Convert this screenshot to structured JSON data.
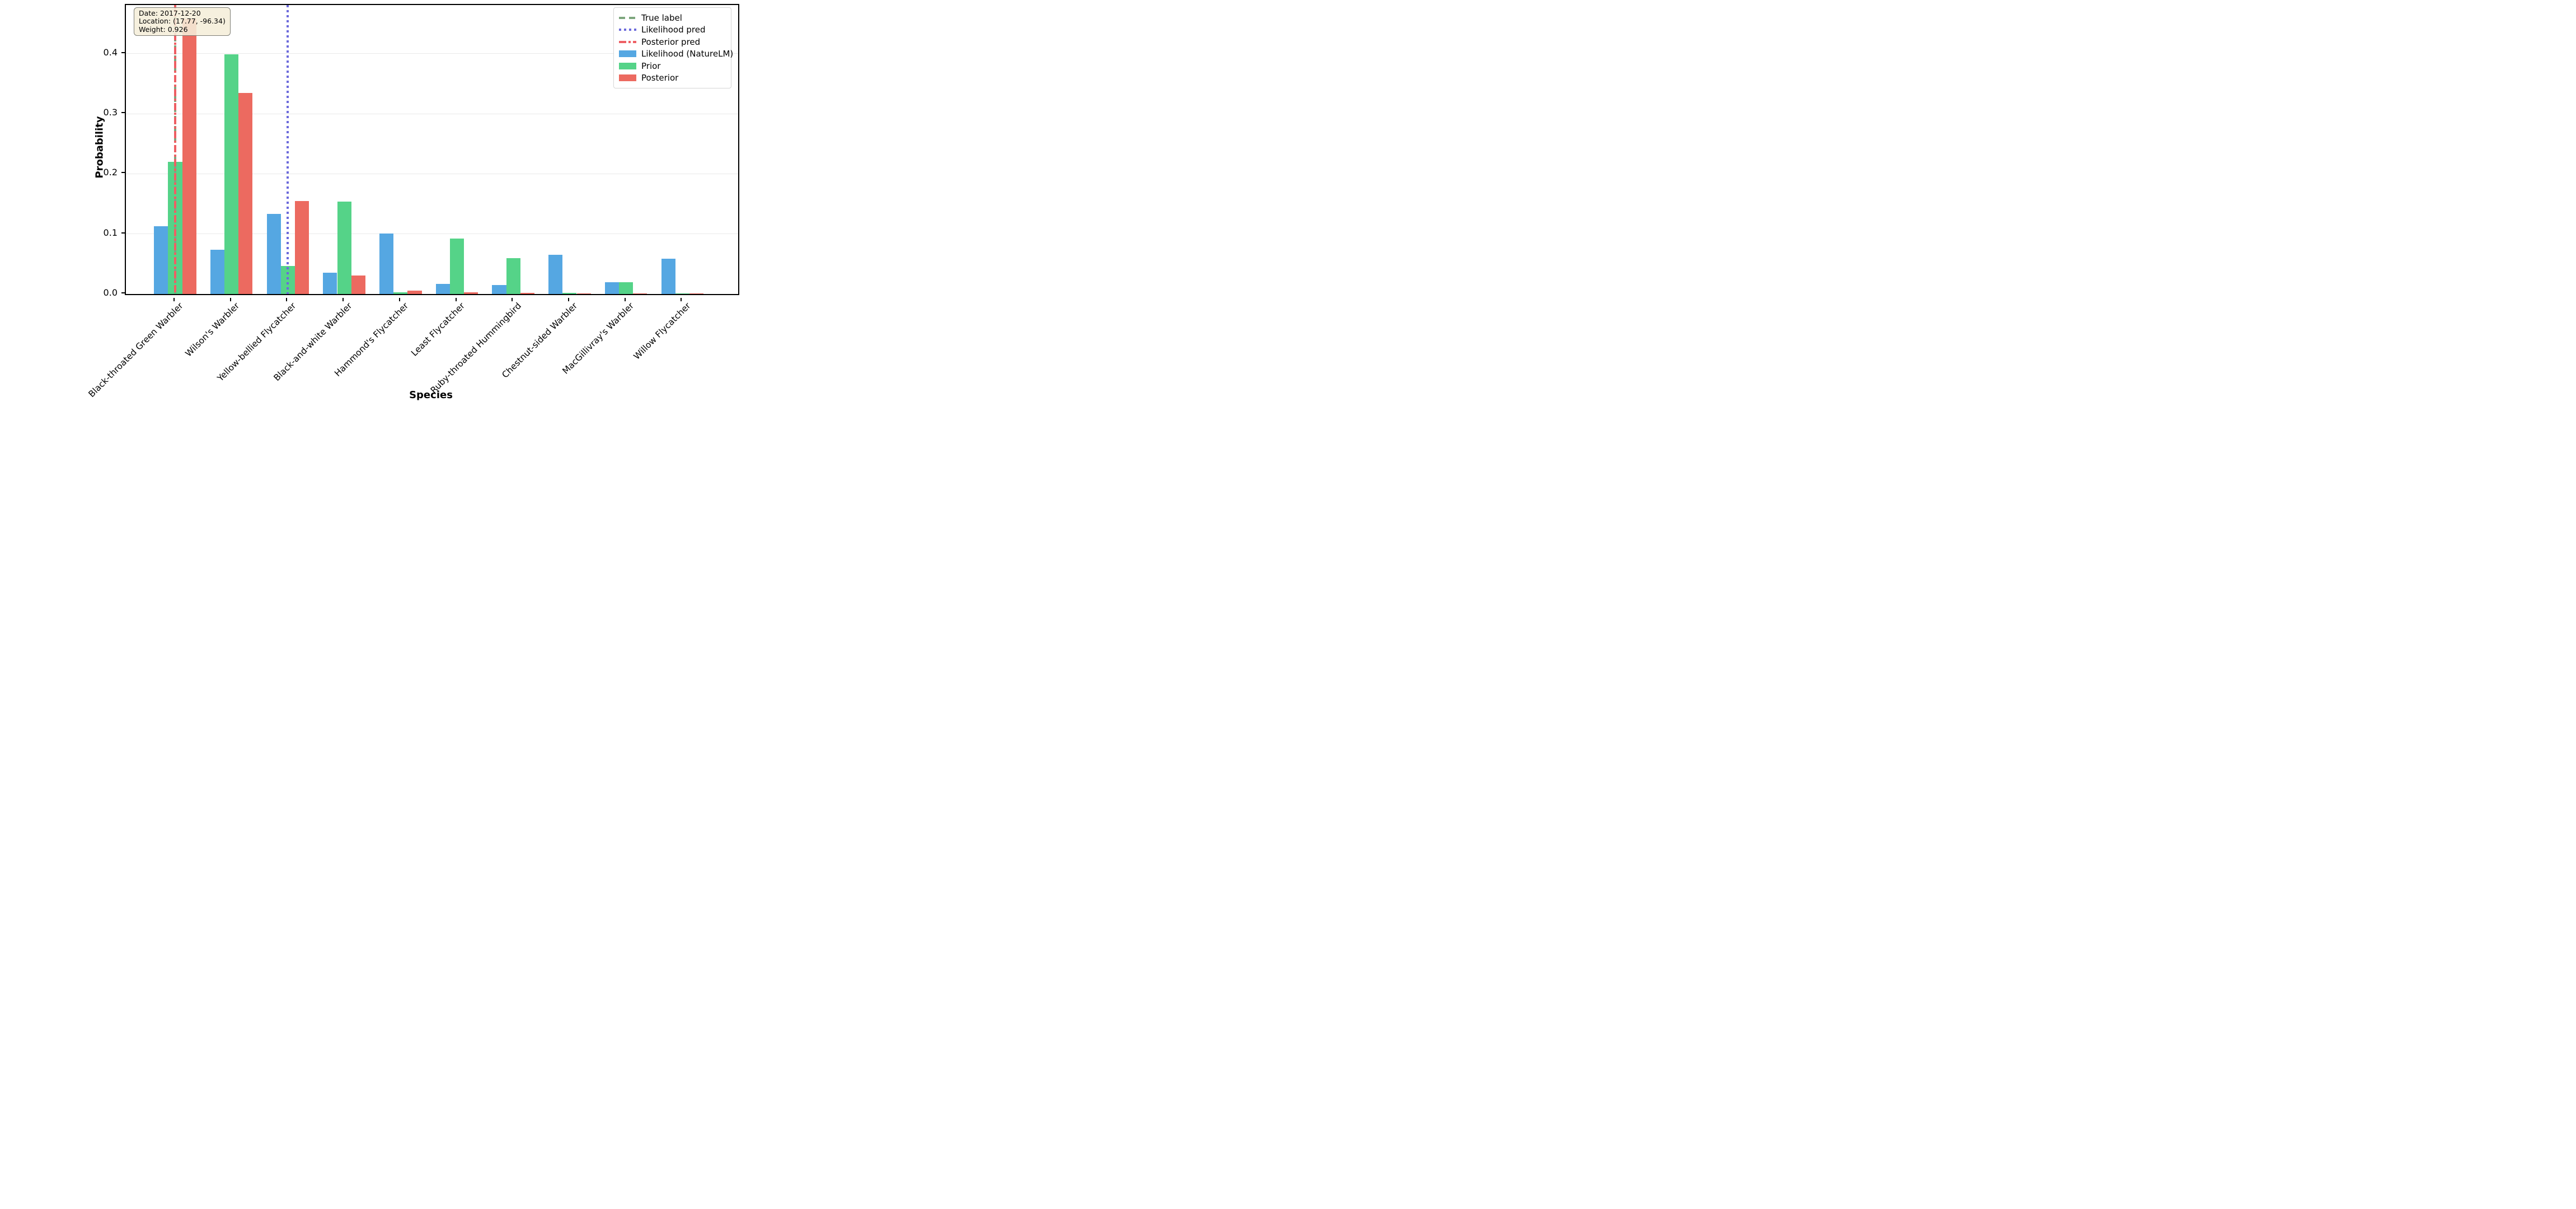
{
  "figure": {
    "background": "#ffffff",
    "annotation": {
      "lines": [
        "Date: 2017-12-20",
        "Location: (17.77, -96.34)",
        "Weight: 0.926"
      ],
      "bg": "#F5EED9",
      "border": "#7D7D75"
    },
    "legend": {
      "entries": [
        {
          "label": "True label",
          "type": "line",
          "style": "dashed",
          "color": "#7DA67D"
        },
        {
          "label": "Likelihood pred",
          "type": "line",
          "style": "dotted",
          "color": "#6C6ADC"
        },
        {
          "label": "Posterior pred",
          "type": "line",
          "style": "dashdot",
          "color": "#EE5F64"
        },
        {
          "label": "Likelihood (NatureLM)",
          "type": "patch",
          "style": "solid",
          "color": "#55A7E2"
        },
        {
          "label": "Prior",
          "type": "patch",
          "style": "solid",
          "color": "#55D388"
        },
        {
          "label": "Posterior",
          "type": "patch",
          "style": "solid",
          "color": "#EC6A60"
        }
      ]
    }
  },
  "chart_data": {
    "type": "bar",
    "title": "",
    "xlabel": "Species",
    "ylabel": "Probability",
    "categories": [
      "Black-throated Green Warbler",
      "Wilson's Warbler",
      "Yellow-bellied Flycatcher",
      "Black-and-white Warbler",
      "Hammond's Flycatcher",
      "Least Flycatcher",
      "Ruby-throated Hummingbird",
      "Chestnut-sided Warbler",
      "MacGillivray's Warbler",
      "Willow Flycatcher"
    ],
    "series": [
      {
        "name": "Likelihood (NatureLM)",
        "color": "#55A7E2",
        "values": [
          0.113,
          0.074,
          0.133,
          0.035,
          0.101,
          0.017,
          0.015,
          0.065,
          0.02,
          0.059
        ]
      },
      {
        "name": "Prior",
        "color": "#55D388",
        "values": [
          0.22,
          0.399,
          0.047,
          0.154,
          0.003,
          0.092,
          0.06,
          0.002,
          0.02,
          0.001
        ]
      },
      {
        "name": "Posterior",
        "color": "#EC6A60",
        "values": [
          0.458,
          0.335,
          0.155,
          0.031,
          0.006,
          0.003,
          0.002,
          0.001,
          0.001,
          0.001
        ]
      }
    ],
    "vlines": [
      {
        "label": "True label",
        "category_index": 0,
        "color": "#7DA67D",
        "style": "dashed"
      },
      {
        "label": "Likelihood pred",
        "category_index": 2,
        "color": "#6C6ADC",
        "style": "dotted"
      },
      {
        "label": "Posterior pred",
        "category_index": 0,
        "color": "#EE5F64",
        "style": "dashdot"
      }
    ],
    "ylim": [
      0,
      0.481
    ],
    "yticks": [
      {
        "value": 0.0,
        "label": "0.0"
      },
      {
        "value": 0.1,
        "label": "0.1"
      },
      {
        "value": 0.2,
        "label": "0.2"
      },
      {
        "value": 0.3,
        "label": "0.3"
      },
      {
        "value": 0.4,
        "label": "0.4"
      }
    ],
    "grid": true,
    "legend_position": "upper right"
  }
}
